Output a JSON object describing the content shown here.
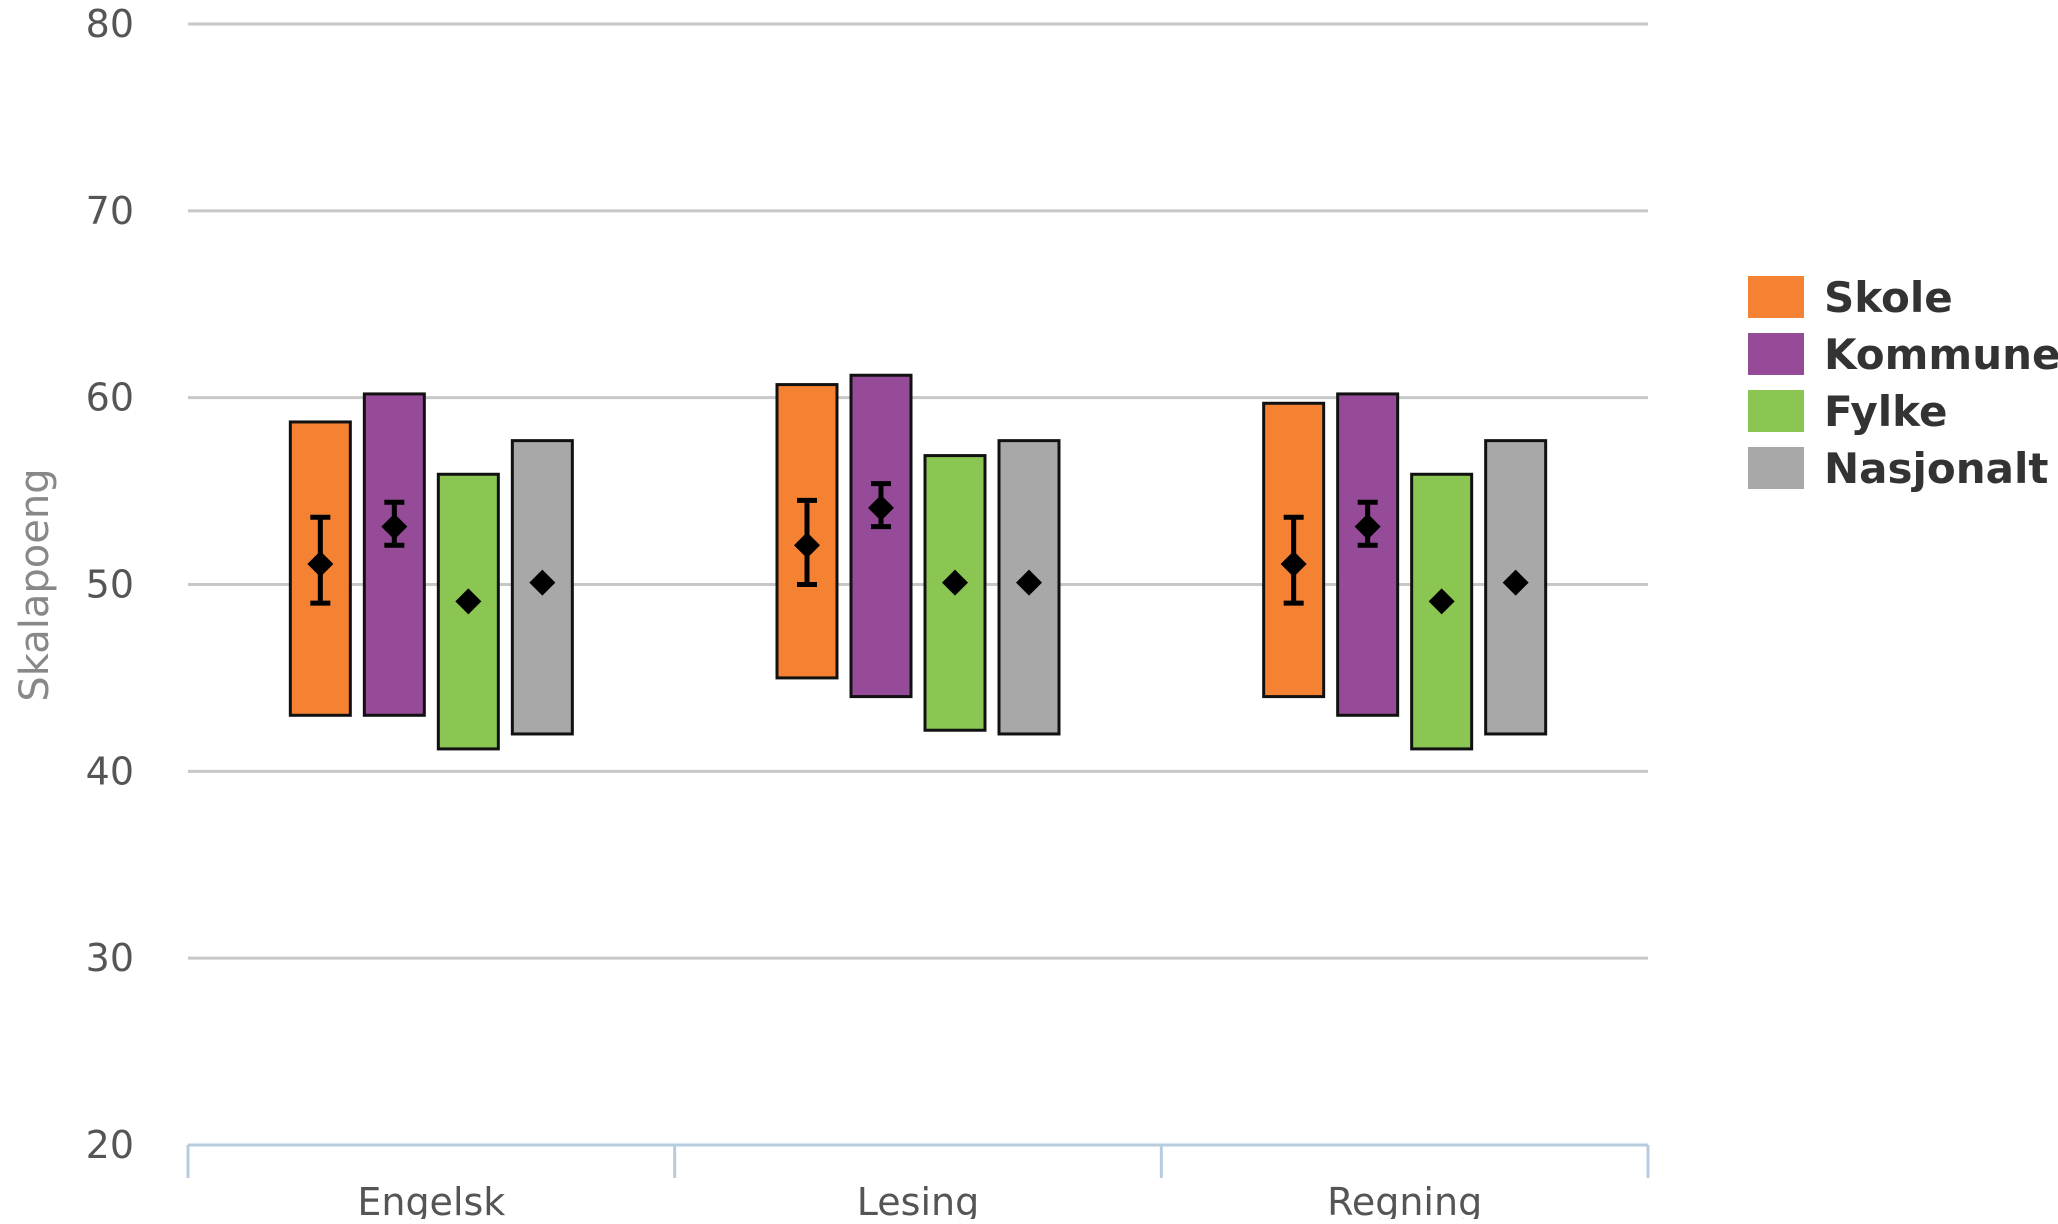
{
  "chart_data": {
    "type": "bar",
    "title": "",
    "xlabel": "",
    "ylabel": "Skalapoeng",
    "ylim": [
      20,
      80
    ],
    "yticks": [
      20,
      30,
      40,
      50,
      60,
      70,
      80
    ],
    "categories": [
      "Engelsk",
      "Lesing",
      "Regning"
    ],
    "grid": true,
    "legend_position": "right",
    "series": [
      {
        "name": "Skole",
        "color": "#f58233",
        "low": [
          43,
          45,
          44
        ],
        "high": [
          58.7,
          60.7,
          59.7
        ],
        "mean": [
          51.1,
          52.1,
          51.1
        ],
        "error_low": [
          49,
          50,
          49
        ],
        "error_high": [
          53.6,
          54.5,
          53.6
        ]
      },
      {
        "name": "Kommune",
        "color": "#964b98",
        "low": [
          43,
          44,
          43
        ],
        "high": [
          60.2,
          61.2,
          60.2
        ],
        "mean": [
          53.1,
          54.1,
          53.1
        ],
        "error_low": [
          52.1,
          53.1,
          52.1
        ],
        "error_high": [
          54.4,
          55.4,
          54.4
        ]
      },
      {
        "name": "Fylke",
        "color": "#8bc653",
        "low": [
          41.2,
          42.2,
          41.2
        ],
        "high": [
          55.9,
          56.9,
          55.9
        ],
        "mean": [
          49.1,
          50.1,
          49.1
        ]
      },
      {
        "name": "Nasjonalt",
        "color": "#a8a8a8",
        "low": [
          42,
          42,
          42
        ],
        "high": [
          57.7,
          57.7,
          57.7
        ],
        "mean": [
          50.1,
          50.1,
          50.1
        ]
      }
    ]
  }
}
